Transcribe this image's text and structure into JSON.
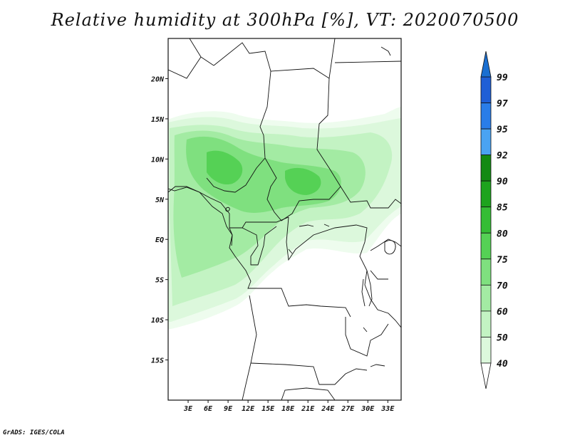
{
  "title": "Relative humidity at 300hPa [%], VT: 2020070500",
  "credit": "GrADS: IGES/COLA",
  "map": {
    "lat_ticks": [
      "20N",
      "15N",
      "10N",
      "5N",
      "EQ",
      "5S",
      "10S",
      "15S"
    ],
    "lat_values": [
      20,
      15,
      10,
      5,
      0,
      -5,
      -10,
      -15
    ],
    "lon_ticks": [
      "3E",
      "6E",
      "9E",
      "12E",
      "15E",
      "18E",
      "21E",
      "24E",
      "27E",
      "30E",
      "33E"
    ],
    "lon_values": [
      3,
      6,
      9,
      12,
      15,
      18,
      21,
      24,
      27,
      30,
      33
    ],
    "lon_range": [
      0,
      35
    ],
    "lat_range": [
      -20,
      25
    ]
  },
  "colorbar": {
    "labels": [
      "99",
      "97",
      "95",
      "92",
      "90",
      "85",
      "80",
      "75",
      "70",
      "60",
      "50",
      "40"
    ],
    "colors": [
      "#1f5fd6",
      "#2a7de8",
      "#4aa3f2",
      "#138a13",
      "#1ea31e",
      "#35bd35",
      "#55d155",
      "#7fe07f",
      "#a3eba3",
      "#c3f3c3",
      "#dcf8dc",
      "#f1fdf1"
    ],
    "low_color": "#ffffff",
    "high_color": "#1a6fd1"
  }
}
